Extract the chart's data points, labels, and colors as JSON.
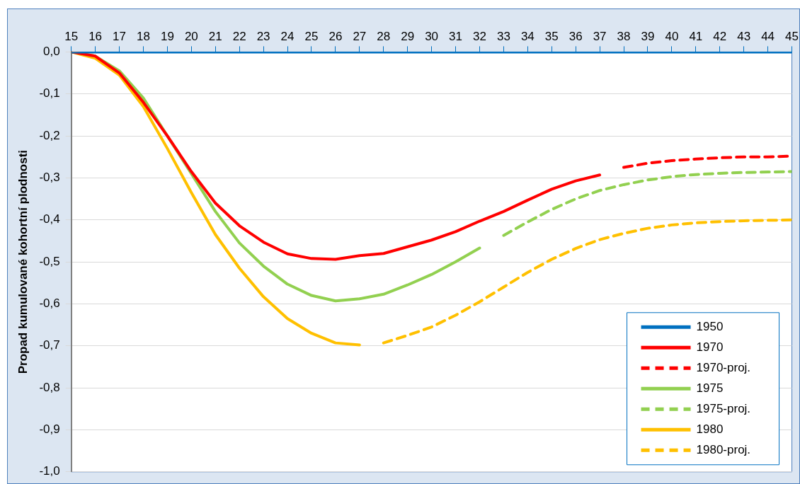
{
  "chart_data": {
    "type": "line",
    "ylabel": "Propad kumulované kohortní plodnosti",
    "xlim": [
      15,
      45
    ],
    "xticks": [
      15,
      16,
      17,
      18,
      19,
      20,
      21,
      22,
      23,
      24,
      25,
      26,
      27,
      28,
      29,
      30,
      31,
      32,
      33,
      34,
      35,
      36,
      37,
      38,
      39,
      40,
      41,
      42,
      43,
      44,
      45
    ],
    "ylim": [
      -1.0,
      0.0
    ],
    "yticks": [
      {
        "value": 0,
        "label": "0,0"
      },
      {
        "value": -0.1,
        "label": "-0,1"
      },
      {
        "value": -0.2,
        "label": "-0,2"
      },
      {
        "value": -0.3,
        "label": "-0,3"
      },
      {
        "value": -0.4,
        "label": "-0,4"
      },
      {
        "value": -0.5,
        "label": "-0,5"
      },
      {
        "value": -0.6,
        "label": "-0,6"
      },
      {
        "value": -0.7,
        "label": "-0,7"
      },
      {
        "value": -0.8,
        "label": "-0,8"
      },
      {
        "value": -0.9,
        "label": "-0,9"
      },
      {
        "value": -1.0,
        "label": "-1,0"
      }
    ],
    "grid": "y",
    "legend": "bottom right",
    "marker": "none",
    "series": [
      {
        "name": "1950",
        "color": "#0070c0",
        "line_style": "solid",
        "x": [
          15,
          16,
          17,
          18,
          19,
          20,
          21,
          22,
          23,
          24,
          25,
          26,
          27,
          28,
          29,
          30,
          31,
          32,
          33,
          34,
          35,
          36,
          37,
          38,
          39,
          40,
          41,
          42,
          43,
          44,
          45
        ],
        "values": [
          0,
          0,
          0,
          0,
          0,
          0,
          0,
          0,
          0,
          0,
          0,
          0,
          0,
          0,
          0,
          0,
          0,
          0,
          0,
          0,
          0,
          0,
          0,
          0,
          0,
          0,
          0,
          0,
          0,
          0,
          0
        ]
      },
      {
        "name": "1970",
        "color": "#ff0000",
        "line_style": "solid",
        "x": [
          15,
          16,
          17,
          18,
          19,
          20,
          21,
          22,
          23,
          24,
          25,
          26,
          27,
          28,
          29,
          30,
          31,
          32,
          33,
          34,
          35,
          36,
          37
        ],
        "values": [
          0,
          -0.01,
          -0.05,
          -0.12,
          -0.2,
          -0.285,
          -0.36,
          -0.414,
          -0.453,
          -0.481,
          -0.492,
          -0.494,
          -0.485,
          -0.48,
          -0.464,
          -0.448,
          -0.428,
          -0.403,
          -0.38,
          -0.353,
          -0.327,
          -0.307,
          -0.293
        ]
      },
      {
        "name": "1970-proj.",
        "color": "#ff0000",
        "line_style": "dashed",
        "x": [
          38,
          39,
          40,
          41,
          42,
          43,
          44,
          45
        ],
        "values": [
          -0.275,
          -0.265,
          -0.259,
          -0.255,
          -0.252,
          -0.25,
          -0.25,
          -0.248
        ]
      },
      {
        "name": "1975",
        "color": "#92d050",
        "line_style": "solid",
        "x": [
          15,
          16,
          17,
          18,
          19,
          20,
          21,
          22,
          23,
          24,
          25,
          26,
          27,
          28,
          29,
          30,
          31,
          32
        ],
        "values": [
          0,
          -0.01,
          -0.045,
          -0.11,
          -0.2,
          -0.29,
          -0.38,
          -0.455,
          -0.51,
          -0.553,
          -0.58,
          -0.593,
          -0.588,
          -0.577,
          -0.555,
          -0.53,
          -0.5,
          -0.467
        ]
      },
      {
        "name": "1975-proj.",
        "color": "#92d050",
        "line_style": "dashed",
        "x": [
          33,
          34,
          35,
          36,
          37,
          38,
          39,
          40,
          41,
          42,
          43,
          44,
          45
        ],
        "values": [
          -0.437,
          -0.405,
          -0.375,
          -0.35,
          -0.33,
          -0.316,
          -0.305,
          -0.297,
          -0.292,
          -0.289,
          -0.287,
          -0.286,
          -0.285
        ]
      },
      {
        "name": "1980",
        "color": "#ffc000",
        "line_style": "solid",
        "x": [
          15,
          16,
          17,
          18,
          19,
          20,
          21,
          22,
          23,
          24,
          25,
          26,
          27
        ],
        "values": [
          0,
          -0.015,
          -0.055,
          -0.13,
          -0.23,
          -0.335,
          -0.435,
          -0.515,
          -0.583,
          -0.635,
          -0.67,
          -0.693,
          -0.698
        ]
      },
      {
        "name": "1980-proj.",
        "color": "#ffc000",
        "line_style": "dashed",
        "x": [
          28,
          29,
          30,
          31,
          32,
          33,
          34,
          35,
          36,
          37,
          38,
          39,
          40,
          41,
          42,
          43,
          44,
          45
        ],
        "values": [
          -0.693,
          -0.675,
          -0.655,
          -0.627,
          -0.595,
          -0.56,
          -0.525,
          -0.494,
          -0.468,
          -0.447,
          -0.432,
          -0.42,
          -0.412,
          -0.407,
          -0.404,
          -0.402,
          -0.401,
          -0.4
        ]
      }
    ]
  }
}
